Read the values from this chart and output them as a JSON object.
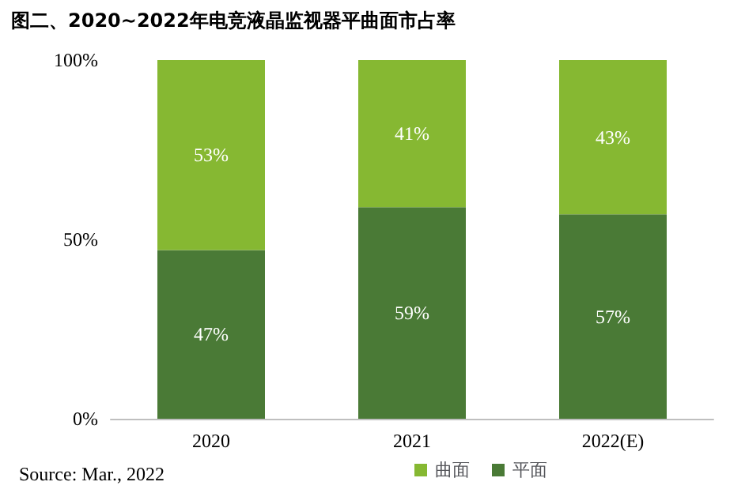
{
  "chart_data": {
    "type": "bar",
    "title": "图二、2020~2022年电竞液晶监视器平曲面市占率",
    "categories": [
      "2020",
      "2021",
      "2022(E)"
    ],
    "stacked": true,
    "series": [
      {
        "name": "平面",
        "color": "#4a7a36",
        "values": [
          47,
          59,
          57
        ],
        "value_labels": [
          "47%",
          "59%",
          "57%"
        ]
      },
      {
        "name": "曲面",
        "color": "#86b832",
        "values": [
          53,
          41,
          43
        ],
        "value_labels": [
          "53%",
          "41%",
          "43%"
        ]
      }
    ],
    "ylim": [
      0,
      100
    ],
    "yticks": [
      {
        "value": 0,
        "label": "0%"
      },
      {
        "value": 50,
        "label": "50%"
      },
      {
        "value": 100,
        "label": "100%"
      }
    ],
    "grid": false,
    "legend": "bottom right",
    "annotations": [
      "Source: Mar., 2022"
    ]
  }
}
